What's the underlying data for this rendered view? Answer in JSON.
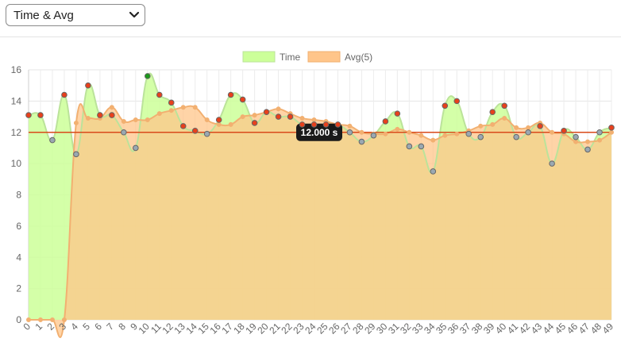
{
  "toolbar": {
    "metric_select_value": "Time & Avg"
  },
  "colors": {
    "time_fill": "#ccff99",
    "time_line": "#bbe39a",
    "avg_fill": "#ffc58a",
    "avg_line": "#f2b071",
    "above_point": "#e8401c",
    "below_point": "#9aa8b2",
    "max_point": "#1a9a1a",
    "threshold": "#d94a1a"
  },
  "chart_data": {
    "type": "area",
    "x": [
      0,
      1,
      2,
      3,
      4,
      5,
      6,
      7,
      8,
      9,
      10,
      11,
      12,
      13,
      14,
      15,
      16,
      17,
      18,
      19,
      20,
      21,
      22,
      23,
      24,
      25,
      26,
      27,
      28,
      29,
      30,
      31,
      32,
      33,
      34,
      35,
      36,
      37,
      38,
      39,
      40,
      41,
      42,
      43,
      44,
      45,
      46,
      47,
      48,
      49
    ],
    "ylim": [
      0,
      16
    ],
    "yticks": [
      0,
      2,
      4,
      6,
      8,
      10,
      12,
      14,
      16
    ],
    "legend_position": "top-center",
    "series": [
      {
        "name": "Time",
        "values": [
          13.1,
          13.1,
          11.5,
          14.4,
          10.6,
          15.0,
          13.1,
          13.1,
          12.0,
          11.0,
          15.6,
          14.4,
          13.9,
          12.4,
          12.1,
          11.9,
          12.8,
          14.4,
          14.1,
          12.6,
          13.3,
          13.0,
          13.0,
          12.5,
          12.5,
          12.5,
          12.5,
          12.0,
          11.4,
          11.8,
          12.7,
          13.2,
          11.1,
          11.1,
          9.5,
          13.7,
          14.0,
          11.9,
          11.7,
          13.3,
          13.7,
          11.7,
          12.0,
          12.4,
          10.0,
          12.1,
          11.7,
          10.9,
          12.0,
          12.3
        ]
      },
      {
        "name": "Avg(5)",
        "values": [
          0,
          0,
          0,
          0,
          12.6,
          12.9,
          12.9,
          13.6,
          12.7,
          12.8,
          12.8,
          13.2,
          13.4,
          13.6,
          13.6,
          12.8,
          12.5,
          12.5,
          13.0,
          13.1,
          13.3,
          13.5,
          13.2,
          12.9,
          12.8,
          12.7,
          12.5,
          12.4,
          12.0,
          11.9,
          11.9,
          12.2,
          12.0,
          11.8,
          11.5,
          11.8,
          11.9,
          12.1,
          12.4,
          12.5,
          12.9,
          12.3,
          12.3,
          12.6,
          12.0,
          11.9,
          11.4,
          11.4,
          11.5,
          12.0
        ]
      }
    ],
    "threshold": {
      "value": 12.0,
      "label": "12.000 s"
    }
  }
}
